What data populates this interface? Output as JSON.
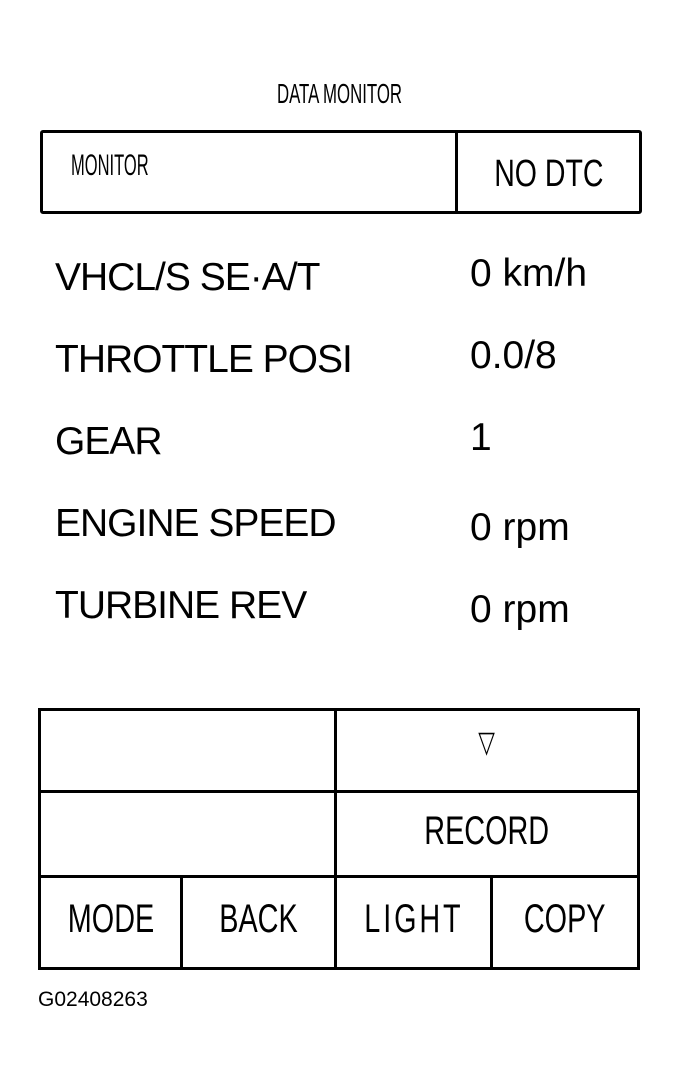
{
  "screen_title": "DATA MONITOR",
  "header": {
    "mode_label": "MONITOR",
    "status": "NO DTC"
  },
  "items": [
    {
      "label": "VHCL/S SE·A/T",
      "value": "0 km/h"
    },
    {
      "label": "THROTTLE POSI",
      "value": "0.0/8"
    },
    {
      "label": "GEAR",
      "value": "1"
    },
    {
      "label": "ENGINE SPEED",
      "value": "0 rpm"
    },
    {
      "label": "TURBINE REV",
      "value": "0 rpm"
    }
  ],
  "buttons": {
    "scroll_down": "▽",
    "record": "RECORD",
    "mode": "MODE",
    "back": "BACK",
    "light": "LIGHT",
    "copy": "COPY"
  },
  "figure_id": "G02408263"
}
